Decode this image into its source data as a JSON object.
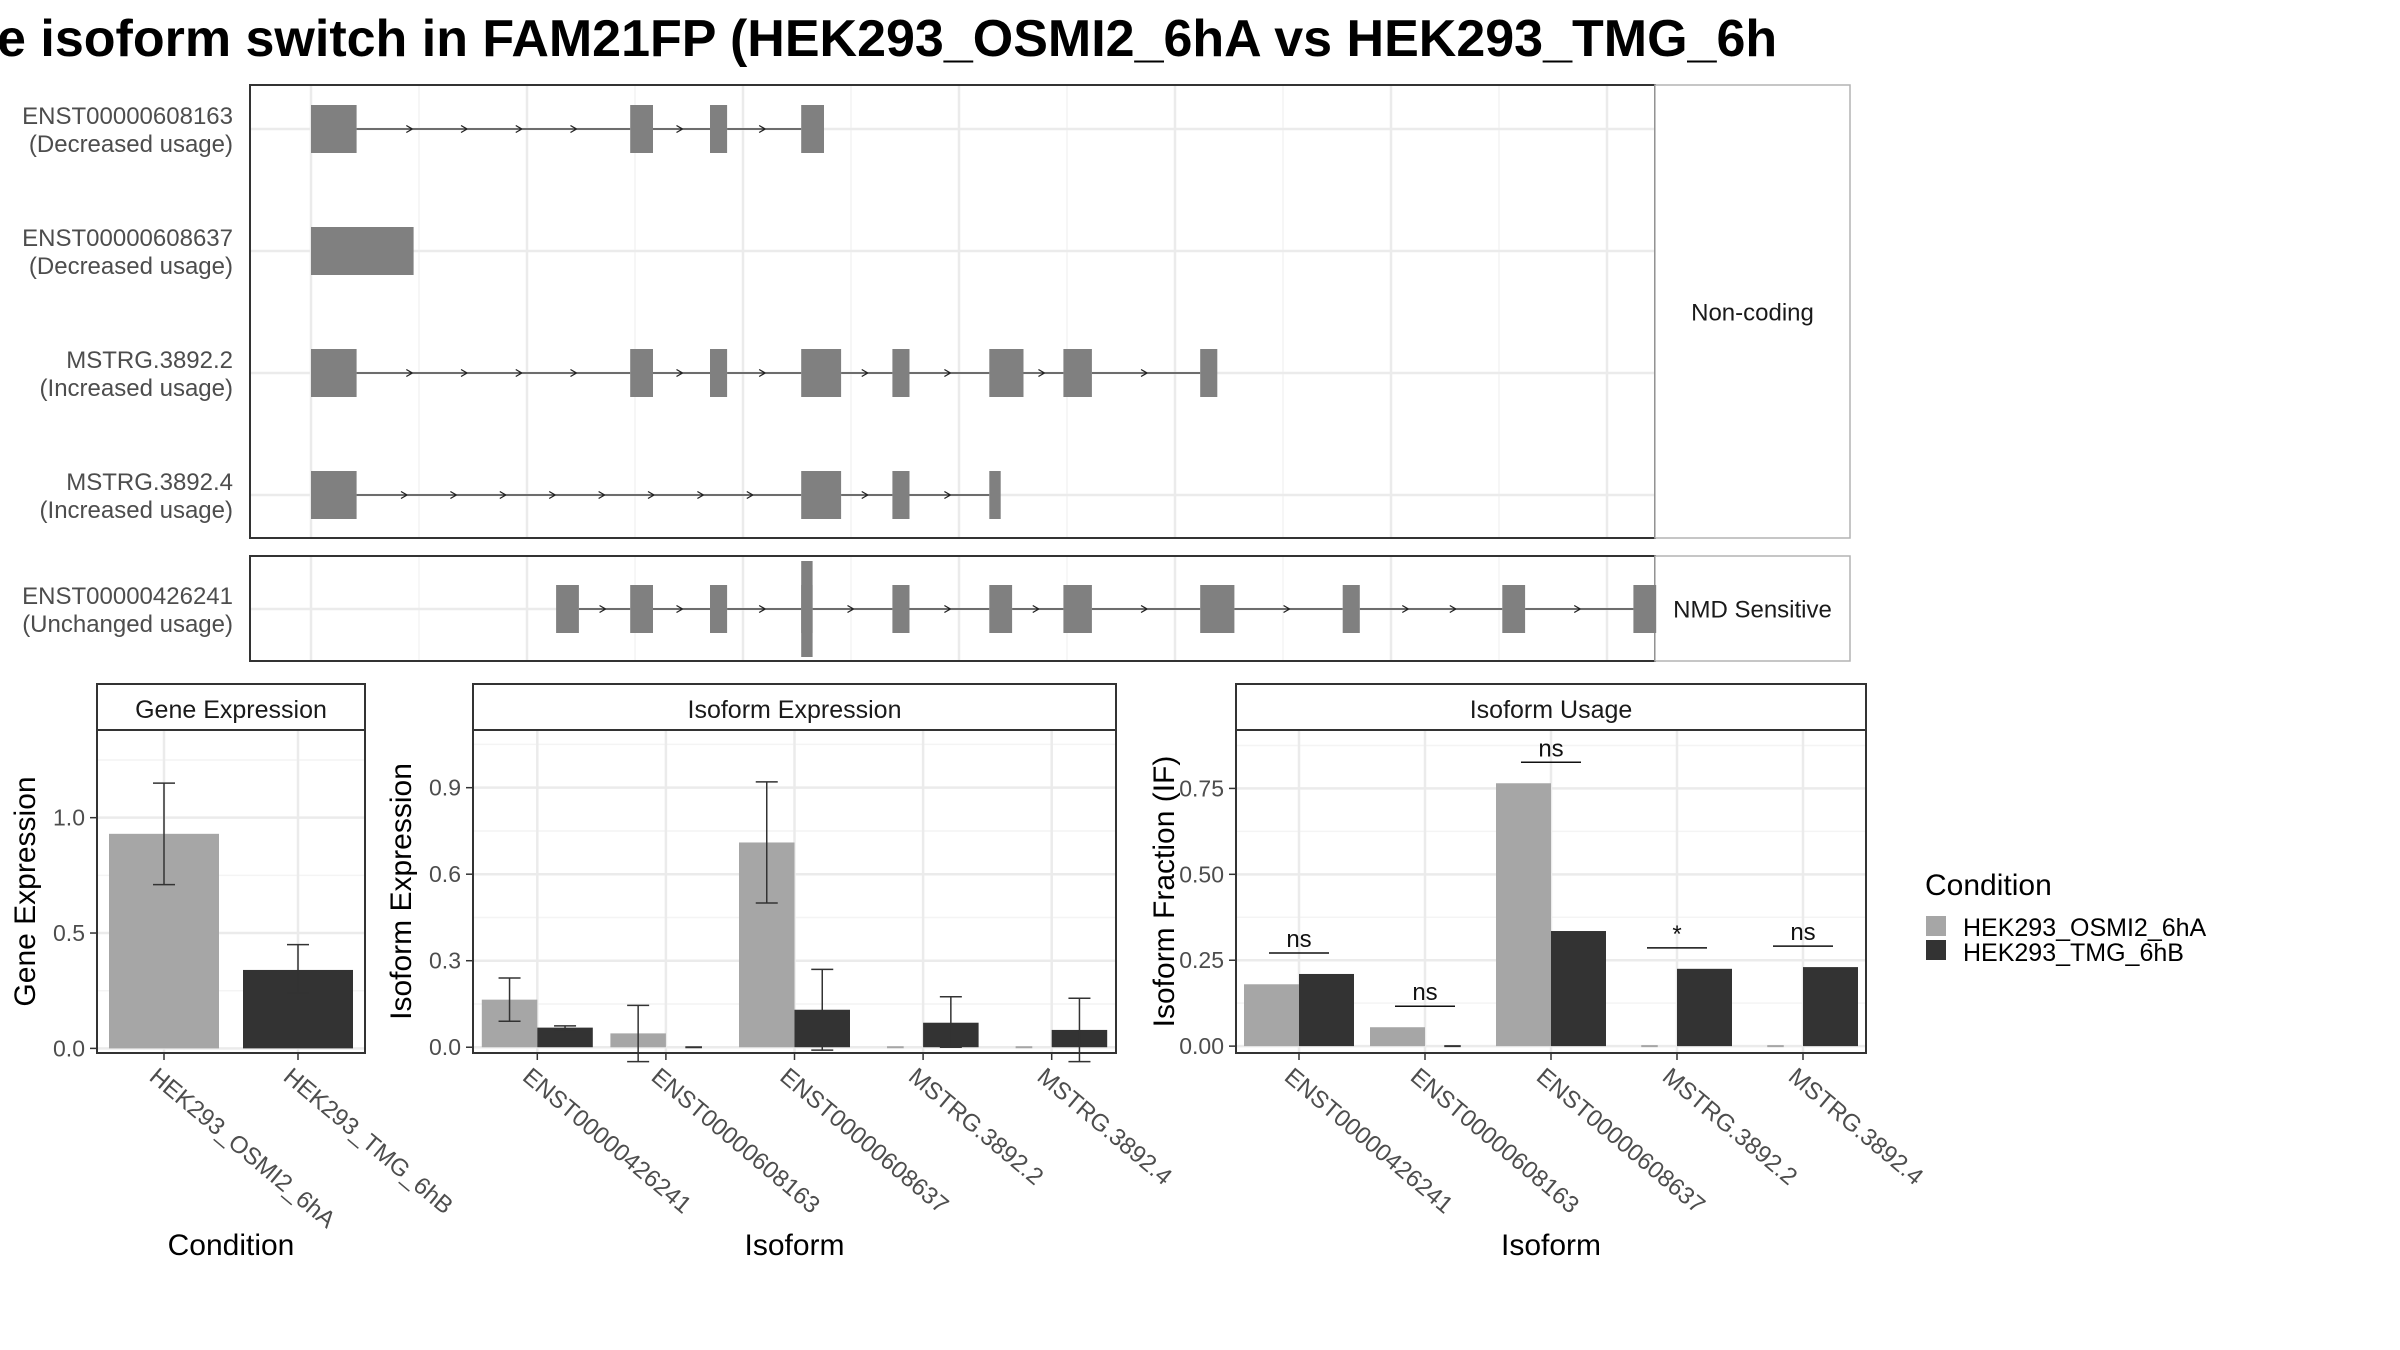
{
  "title": "e isoform switch in FAM21FP (HEK293_OSMI2_6hA vs HEK293_TMG_6h",
  "colors": {
    "exon": "#808080",
    "osmi": "#a6a6a6",
    "tmg": "#333333",
    "grid": "#ebebeb",
    "frame": "#333333",
    "strip": "#ffffff"
  },
  "structure": {
    "facets": [
      "Non-coding",
      "NMD Sensitive"
    ],
    "transcripts": [
      {
        "id": "ENST00000608163",
        "usage": "(Decreased usage)",
        "facet": "Non-coding",
        "exons": [
          [
            0,
            8
          ],
          [
            56,
            60
          ],
          [
            70,
            73
          ],
          [
            86,
            90
          ]
        ]
      },
      {
        "id": "ENST00000608637",
        "usage": "(Decreased usage)",
        "facet": "Non-coding",
        "exons": [
          [
            0,
            18
          ]
        ]
      },
      {
        "id": "MSTRG.3892.2",
        "usage": "(Increased usage)",
        "facet": "Non-coding",
        "exons": [
          [
            0,
            8
          ],
          [
            56,
            60
          ],
          [
            70,
            73
          ],
          [
            86,
            93
          ],
          [
            102,
            105
          ],
          [
            119,
            125
          ],
          [
            132,
            137
          ],
          [
            156,
            159
          ]
        ]
      },
      {
        "id": "MSTRG.3892.4",
        "usage": "(Increased usage)",
        "facet": "Non-coding",
        "exons": [
          [
            0,
            8
          ],
          [
            86,
            93
          ],
          [
            102,
            105
          ],
          [
            119,
            121
          ]
        ]
      },
      {
        "id": "ENST00000426241",
        "usage": "(Unchanged usage)",
        "facet": "NMD Sensitive",
        "exons": [
          [
            43,
            47
          ],
          [
            56,
            60
          ],
          [
            70,
            73
          ],
          [
            86,
            88
          ],
          [
            102,
            105
          ],
          [
            119,
            123
          ],
          [
            132,
            137
          ],
          [
            156,
            162
          ],
          [
            181,
            184
          ],
          [
            209,
            213
          ],
          [
            232,
            236
          ]
        ],
        "cds_tall_exon": [
          86,
          88
        ]
      }
    ]
  },
  "chart_data": [
    {
      "type": "bar",
      "title": "Gene Expression",
      "xlabel": "Condition",
      "ylabel": "Gene Expression",
      "ylim": [
        -0.02,
        1.38
      ],
      "yticks": [
        "0.0",
        "0.5",
        "1.0"
      ],
      "categories": [
        "HEK293_OSMI2_6hA",
        "HEK293_TMG_6hB"
      ],
      "series": [
        {
          "name": "HEK293_OSMI2_6hA",
          "values": [
            0.93,
            null
          ],
          "err_low": [
            0.71,
            null
          ],
          "err_high": [
            1.15,
            null
          ]
        },
        {
          "name": "HEK293_TMG_6hB",
          "values": [
            null,
            0.34
          ],
          "err_low": [
            null,
            0.24
          ],
          "err_high": [
            null,
            0.45
          ]
        }
      ]
    },
    {
      "type": "bar",
      "title": "Isoform Expression",
      "xlabel": "Isoform",
      "ylabel": "Isoform Expression",
      "ylim": [
        -0.02,
        1.1
      ],
      "yticks": [
        "0.0",
        "0.3",
        "0.6",
        "0.9"
      ],
      "categories": [
        "ENST00000426241",
        "ENST00000608163",
        "ENST00000608637",
        "MSTRG.3892.2",
        "MSTRG.3892.4"
      ],
      "series": [
        {
          "name": "HEK293_OSMI2_6hA",
          "values": [
            0.165,
            0.048,
            0.71,
            0.0,
            0.0
          ],
          "err_low": [
            0.09,
            -0.05,
            0.5,
            null,
            null
          ],
          "err_high": [
            0.24,
            0.145,
            0.92,
            null,
            null
          ]
        },
        {
          "name": "HEK293_TMG_6hB",
          "values": [
            0.068,
            0.0,
            0.13,
            0.085,
            0.06
          ],
          "err_low": [
            0.062,
            null,
            -0.01,
            0.0,
            -0.05
          ],
          "err_high": [
            0.074,
            null,
            0.27,
            0.175,
            0.17
          ]
        }
      ]
    },
    {
      "type": "bar",
      "title": "Isoform Usage",
      "xlabel": "Isoform",
      "ylabel": "Isoform Fraction (IF)",
      "ylim": [
        -0.02,
        0.92
      ],
      "yticks": [
        "0.00",
        "0.25",
        "0.50",
        "0.75"
      ],
      "categories": [
        "ENST00000426241",
        "ENST00000608163",
        "ENST00000608637",
        "MSTRG.3892.2",
        "MSTRG.3892.4"
      ],
      "series": [
        {
          "name": "HEK293_OSMI2_6hA",
          "values": [
            0.18,
            0.055,
            0.765,
            0.0,
            0.0
          ]
        },
        {
          "name": "HEK293_TMG_6hB",
          "values": [
            0.21,
            0.0,
            0.335,
            0.225,
            0.23
          ]
        }
      ],
      "significance": [
        "ns",
        "ns",
        "ns",
        "*",
        "ns"
      ]
    }
  ],
  "legend": {
    "title": "Condition",
    "items": [
      "HEK293_OSMI2_6hA",
      "HEK293_TMG_6hB"
    ]
  }
}
